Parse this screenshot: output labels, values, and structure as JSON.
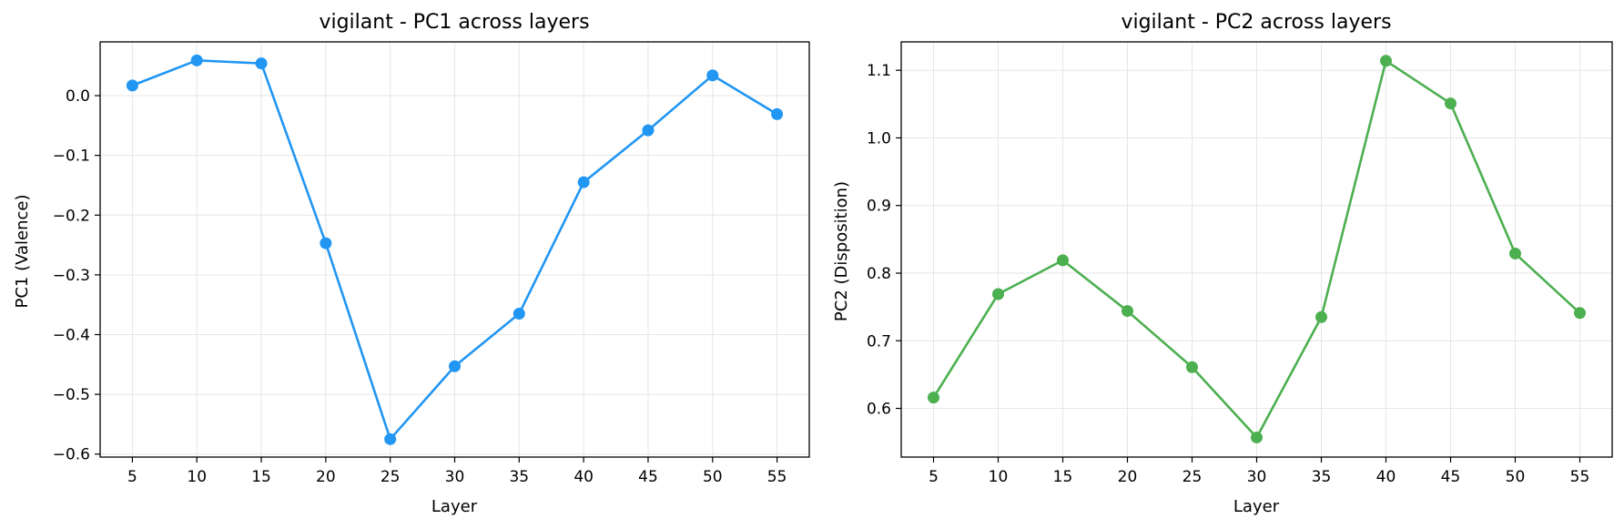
{
  "chart_data": [
    {
      "type": "line",
      "title": "vigilant - PC1 across layers",
      "xlabel": "Layer",
      "ylabel": "PC1 (Valence)",
      "x": [
        5,
        10,
        15,
        20,
        25,
        30,
        35,
        40,
        45,
        50,
        55
      ],
      "xticks": [
        5,
        10,
        15,
        20,
        25,
        30,
        35,
        40,
        45,
        50,
        55
      ],
      "xlim": [
        2.5,
        57.5
      ],
      "yticks": [
        0.0,
        -0.1,
        -0.2,
        -0.3,
        -0.4,
        -0.5,
        -0.6
      ],
      "ytick_labels": [
        "0.0",
        "−0.1",
        "−0.2",
        "−0.3",
        "−0.4",
        "−0.5",
        "−0.6"
      ],
      "ylim": [
        -0.605,
        0.09
      ],
      "grid": true,
      "series": [
        {
          "color": "#2196F3",
          "values": [
            0.017,
            0.059,
            0.054,
            -0.247,
            -0.575,
            -0.453,
            -0.365,
            -0.145,
            -0.058,
            0.034,
            -0.031
          ]
        }
      ]
    },
    {
      "type": "line",
      "title": "vigilant - PC2 across layers",
      "xlabel": "Layer",
      "ylabel": "PC2 (Disposition)",
      "x": [
        5,
        10,
        15,
        20,
        25,
        30,
        35,
        40,
        45,
        50,
        55
      ],
      "xticks": [
        5,
        10,
        15,
        20,
        25,
        30,
        35,
        40,
        45,
        50,
        55
      ],
      "xlim": [
        2.5,
        57.5
      ],
      "yticks": [
        0.6,
        0.7,
        0.8,
        0.9,
        1.0,
        1.1
      ],
      "ytick_labels": [
        "0.6",
        "0.7",
        "0.8",
        "0.9",
        "1.0",
        "1.1"
      ],
      "ylim": [
        0.528,
        1.142
      ],
      "grid": true,
      "series": [
        {
          "color": "#4CAF50",
          "values": [
            0.616,
            0.769,
            0.819,
            0.744,
            0.661,
            0.557,
            0.735,
            1.114,
            1.051,
            0.829,
            0.741
          ]
        }
      ]
    }
  ]
}
